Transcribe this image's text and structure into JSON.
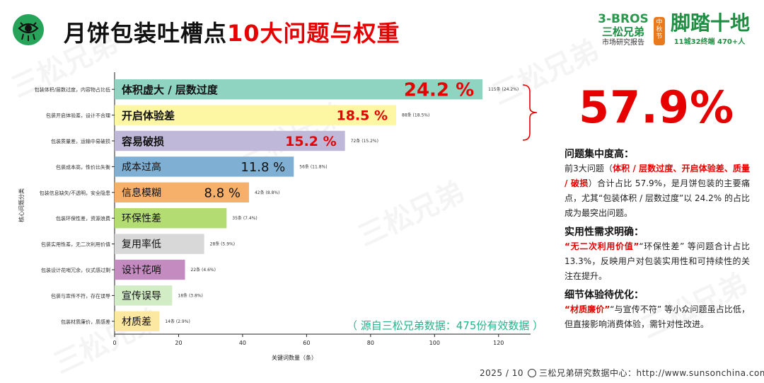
{
  "header": {
    "title_part1": "月饼包装吐槽点",
    "title_part2": "10大问题与权重",
    "brand_en": "3-BROS",
    "brand_cn": "三松兄弟",
    "brand_sub": "市场研究报告",
    "badge": "中秋节",
    "brand2_main": "脚踏十地",
    "brand2_sub": "11城32终端  470+人"
  },
  "watermark_text": "三松兄弟",
  "chart_data": {
    "type": "bar",
    "orientation": "horizontal",
    "ylabel": "核心问题分类",
    "xlabel": "关键词数量（条）",
    "xlim": [
      0,
      130
    ],
    "xticks": [
      0,
      20,
      40,
      60,
      80,
      100,
      120
    ],
    "categories": [
      "包装体积/层数过度，内容物占比低",
      "包装开启体验差，设计不合理",
      "包装质量差，运输中易破损",
      "包装成本高，性价比失衡",
      "包装信息缺失/不透明，安全隐患",
      "包装环保性差，资源浪费",
      "包装实用性差，无二次利用价值",
      "包装设计花哨冗余，仪式感过剩",
      "包装与宣传不符，存在误导",
      "包装材质廉价，质感差"
    ],
    "labels": [
      "体积虚大 / 层数过度",
      "开启体验差",
      "容易破损",
      "成本过高",
      "信息模糊",
      "环保性差",
      "复用率低",
      "设计花哨",
      "宣传误导",
      "材质差"
    ],
    "values": [
      115,
      88,
      72,
      56,
      42,
      35,
      28,
      22,
      18,
      14
    ],
    "percents": [
      "24.2%",
      "18.5%",
      "15.2%",
      "11.8%",
      "8.8%",
      "7.4%",
      "5.9%",
      "4.6%",
      "3.8%",
      "2.9%"
    ],
    "value_labels": [
      "115条 (24.2%)",
      "88条 (18.5%)",
      "72条 (15.2%)",
      "56条 (11.8%)",
      "42条 (8.8%)",
      "35条 (7.4%)",
      "28条 (5.9%)",
      "22条 (4.6%)",
      "18条 (3.8%)",
      "14条 (2.9%)"
    ],
    "big_percent_labels": [
      "24.2 %",
      "18.5 %",
      "15.2 %",
      "11.8 %",
      "8.8 %",
      "",
      "",
      "",
      "",
      ""
    ],
    "colors": [
      "#8fd4c1",
      "#fdf7a4",
      "#bfb8d9",
      "#7fb0d3",
      "#f6b06a",
      "#b3dc73",
      "#d8d8d8",
      "#c48bc0",
      "#d2ecc6",
      "#fde8a2"
    ],
    "grid": false
  },
  "source_note": "（ 源自三松兄弟数据：475份有效数据 ）",
  "summary": {
    "big_percent": "57.9%",
    "h1": "问题集中度高：",
    "p1_a": "前3大问题（",
    "p1_red": "体积 / 层数过度、开启体验差、质量 / 破损",
    "p1_b": "）合计占比 57.9%，是月饼包装的主要痛点，尤其“包装体积 / 层数过度”以 24.2% 的占比成为最突出问题。",
    "h2": "实用性需求明确：",
    "p2_red": "“无二次利用价值”",
    "p2_b": "“环保性差” 等问题合计占比 13.3%，反映用户对包装实用性和可持续性的关注在提升。",
    "h3": "细节体验待优化：",
    "p3_red": "“材质廉价”",
    "p3_b": "“与宣传不符” 等小众问题虽占比低，但直接影响消费体验，需针对性改进。"
  },
  "footer": {
    "date": "2025 / 10",
    "center": "三松兄弟研究数据中心：http://www.sunsonchina.com/"
  }
}
